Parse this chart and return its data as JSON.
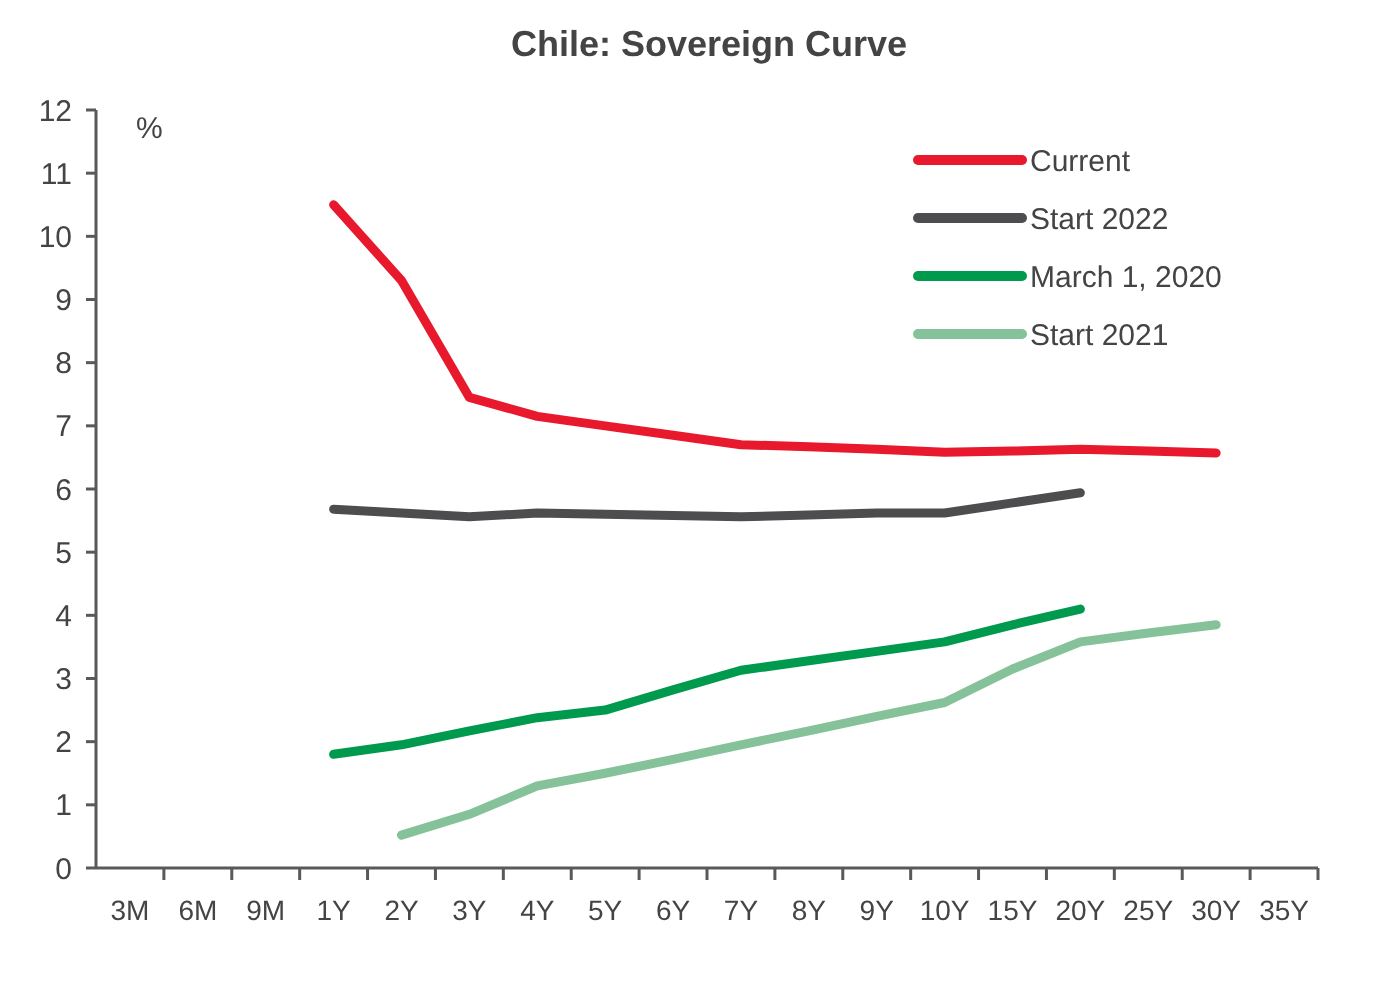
{
  "chart_data": {
    "type": "line",
    "title": "Chile:  Sovereign Curve",
    "ylabel": "%",
    "categories": [
      "3M",
      "6M",
      "9M",
      "1Y",
      "2Y",
      "3Y",
      "4Y",
      "5Y",
      "6Y",
      "7Y",
      "8Y",
      "9Y",
      "10Y",
      "15Y",
      "20Y",
      "25Y",
      "30Y",
      "35Y"
    ],
    "series": [
      {
        "name": "Current",
        "color": "#e8192c",
        "values": [
          null,
          null,
          null,
          10.5,
          9.3,
          7.45,
          7.15,
          7.0,
          6.85,
          6.7,
          6.67,
          6.63,
          6.58,
          6.6,
          6.63,
          6.6,
          6.57,
          null
        ]
      },
      {
        "name": "Start 2022",
        "color": "#4d4d4f",
        "values": [
          null,
          null,
          null,
          5.68,
          5.62,
          5.56,
          5.62,
          5.6,
          5.58,
          5.56,
          5.59,
          5.62,
          5.62,
          5.78,
          5.94,
          null,
          null,
          null
        ]
      },
      {
        "name": "March 1, 2020",
        "color": "#009a4e",
        "values": [
          null,
          null,
          null,
          1.8,
          1.95,
          2.17,
          2.38,
          2.5,
          2.82,
          3.13,
          3.28,
          3.43,
          3.58,
          3.85,
          4.1,
          null,
          null,
          null
        ]
      },
      {
        "name": "Start 2021",
        "color": "#85c29a",
        "values": [
          null,
          null,
          null,
          null,
          0.52,
          0.85,
          1.3,
          1.5,
          1.72,
          1.95,
          2.17,
          2.4,
          2.62,
          3.15,
          3.58,
          3.72,
          3.85,
          null
        ]
      }
    ],
    "ylim": [
      0,
      12
    ],
    "yticks": [
      0,
      1,
      2,
      3,
      4,
      5,
      6,
      7,
      8,
      9,
      10,
      11,
      12
    ],
    "grid": false,
    "legend": "top right",
    "marker": "none",
    "line_style": "solid"
  }
}
